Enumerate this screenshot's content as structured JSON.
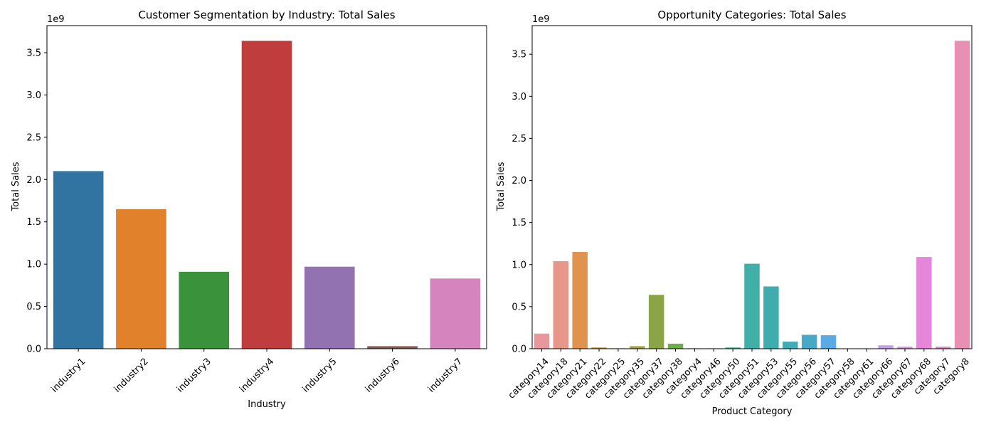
{
  "chart_data": [
    {
      "type": "bar",
      "title": "Customer Segmentation by Industry: Total Sales",
      "xlabel": "Industry",
      "ylabel": "Total Sales",
      "y_exponent_label": "1e9",
      "ylim": [
        0,
        3.82
      ],
      "yticks": [
        0.0,
        0.5,
        1.0,
        1.5,
        2.0,
        2.5,
        3.0,
        3.5
      ],
      "ytick_labels": [
        "0.0",
        "0.5",
        "1.0",
        "1.5",
        "2.0",
        "2.5",
        "3.0",
        "3.5"
      ],
      "grid": false,
      "categories": [
        "industry1",
        "industry2",
        "industry3",
        "industry4",
        "industry5",
        "industry6",
        "industry7"
      ],
      "values": [
        2.1,
        1.65,
        0.91,
        3.64,
        0.97,
        0.03,
        0.83
      ],
      "colors": [
        "#3274a1",
        "#e1812c",
        "#3a923a",
        "#c03d3e",
        "#9372b2",
        "#845b53",
        "#d684bd"
      ]
    },
    {
      "type": "bar",
      "title": "Opportunity Categories: Total Sales",
      "xlabel": "Product Category",
      "ylabel": "Total Sales",
      "y_exponent_label": "1e9",
      "ylim": [
        0,
        3.84
      ],
      "yticks": [
        0.0,
        0.5,
        1.0,
        1.5,
        2.0,
        2.5,
        3.0,
        3.5
      ],
      "ytick_labels": [
        "0.0",
        "0.5",
        "1.0",
        "1.5",
        "2.0",
        "2.5",
        "3.0",
        "3.5"
      ],
      "grid": false,
      "categories": [
        "category14",
        "category18",
        "category21",
        "category22",
        "category25",
        "category35",
        "category37",
        "category38",
        "category4",
        "category46",
        "category50",
        "category51",
        "category53",
        "category55",
        "category56",
        "category57",
        "category58",
        "category61",
        "category66",
        "category67",
        "category68",
        "category7",
        "category8"
      ],
      "values": [
        0.18,
        1.04,
        1.15,
        0.015,
        0.005,
        0.03,
        0.64,
        0.06,
        0.005,
        0.005,
        0.015,
        1.01,
        0.74,
        0.085,
        0.165,
        0.16,
        0.0,
        0.003,
        0.04,
        0.025,
        1.09,
        0.025,
        3.66
      ],
      "colors": [
        "#e9969c",
        "#e8968a",
        "#e0924f",
        "#c1963f",
        "#b09f3a",
        "#9fa33c",
        "#8ba446",
        "#6eae47",
        "#4ab14f",
        "#3cb27a",
        "#3db59a",
        "#40afa7",
        "#3fadad",
        "#43abb8",
        "#48a9c6",
        "#5aaae4",
        "#9ca9e6",
        "#b3a1e3",
        "#c89be4",
        "#dc92e0",
        "#e686da",
        "#e985cd",
        "#e98fb4"
      ]
    }
  ]
}
